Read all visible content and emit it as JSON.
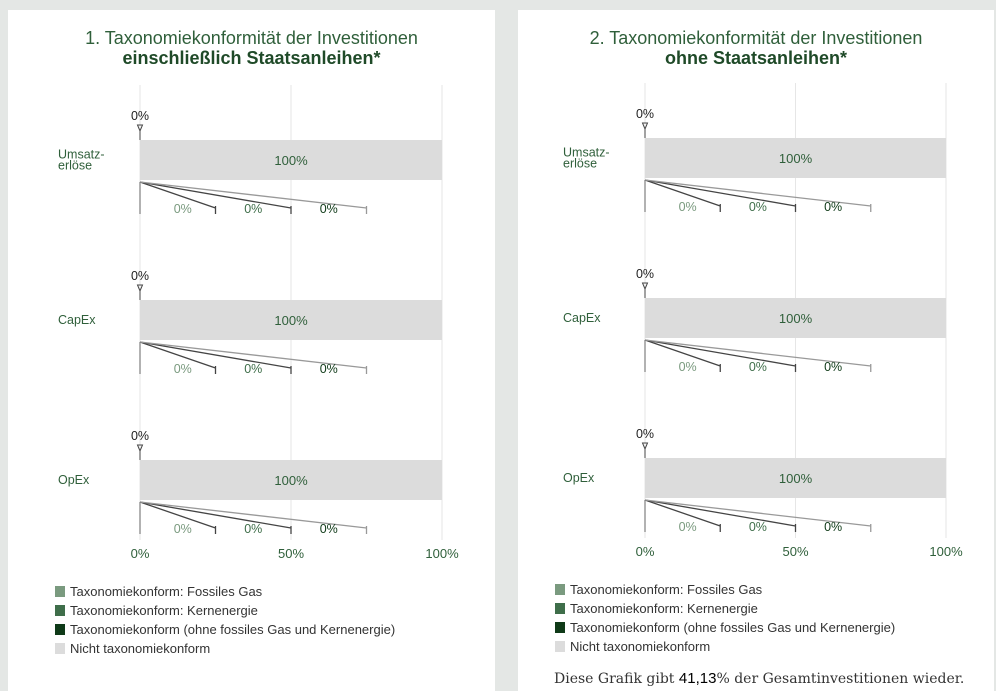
{
  "colors": {
    "fossil_gas": "#7a9a7f",
    "nuclear": "#3f6e4a",
    "taxonomy_other": "#0f3a18",
    "not_aligned": "#dcdcdc"
  },
  "legend": [
    {
      "label": "Taxonomiekonform: Fossiles Gas",
      "color_key": "fossil_gas"
    },
    {
      "label": "Taxonomiekonform: Kernenergie",
      "color_key": "nuclear"
    },
    {
      "label": "Taxonomiekonform (ohne fossiles Gas und Kernenergie)",
      "color_key": "taxonomy_other"
    },
    {
      "label": "Nicht taxonomiekonform",
      "color_key": "not_aligned"
    }
  ],
  "footnote": {
    "prefix": "Diese Grafik gibt ",
    "value": "41,13",
    "suffix": "% der Gesamtinvestitionen wieder."
  },
  "chart_data": [
    {
      "type": "bar",
      "title": "1. Taxonomiekonformität der Investitionen",
      "subtitle": "einschließlich Staatsanleihen*",
      "categories": [
        "Umsatz-\nerlöse",
        "CapEx",
        "OpEx"
      ],
      "xlim": [
        0,
        100
      ],
      "xticks": [
        "0%",
        "50%",
        "100%"
      ],
      "series": [
        {
          "name": "Taxonomiekonform: Fossiles Gas",
          "values": [
            0,
            0,
            0
          ]
        },
        {
          "name": "Taxonomiekonform: Kernenergie",
          "values": [
            0,
            0,
            0
          ]
        },
        {
          "name": "Taxonomiekonform (ohne fossiles Gas und Kernenergie)",
          "values": [
            0,
            0,
            0
          ]
        },
        {
          "name": "Nicht taxonomiekonform",
          "values": [
            100,
            100,
            100
          ]
        }
      ],
      "labels": {
        "total_aligned": [
          "0%",
          "0%",
          "0%"
        ],
        "not_aligned": [
          "100%",
          "100%",
          "100%"
        ],
        "breakdown": [
          [
            "0%",
            "0%",
            "0%"
          ],
          [
            "0%",
            "0%",
            "0%"
          ],
          [
            "0%",
            "0%",
            "0%"
          ]
        ]
      }
    },
    {
      "type": "bar",
      "title": "2. Taxonomiekonformität der Investitionen",
      "subtitle": "ohne Staatsanleihen*",
      "categories": [
        "Umsatz-\nerlöse",
        "CapEx",
        "OpEx"
      ],
      "xlim": [
        0,
        100
      ],
      "xticks": [
        "0%",
        "50%",
        "100%"
      ],
      "series": [
        {
          "name": "Taxonomiekonform: Fossiles Gas",
          "values": [
            0,
            0,
            0
          ]
        },
        {
          "name": "Taxonomiekonform: Kernenergie",
          "values": [
            0,
            0,
            0
          ]
        },
        {
          "name": "Taxonomiekonform (ohne fossiles Gas und Kernenergie)",
          "values": [
            0,
            0,
            0
          ]
        },
        {
          "name": "Nicht taxonomiekonform",
          "values": [
            100,
            100,
            100
          ]
        }
      ],
      "labels": {
        "total_aligned": [
          "0%",
          "0%",
          "0%"
        ],
        "not_aligned": [
          "100%",
          "100%",
          "100%"
        ],
        "breakdown": [
          [
            "0%",
            "0%",
            "0%"
          ],
          [
            "0%",
            "0%",
            "0%"
          ],
          [
            "0%",
            "0%",
            "0%"
          ]
        ]
      }
    }
  ]
}
